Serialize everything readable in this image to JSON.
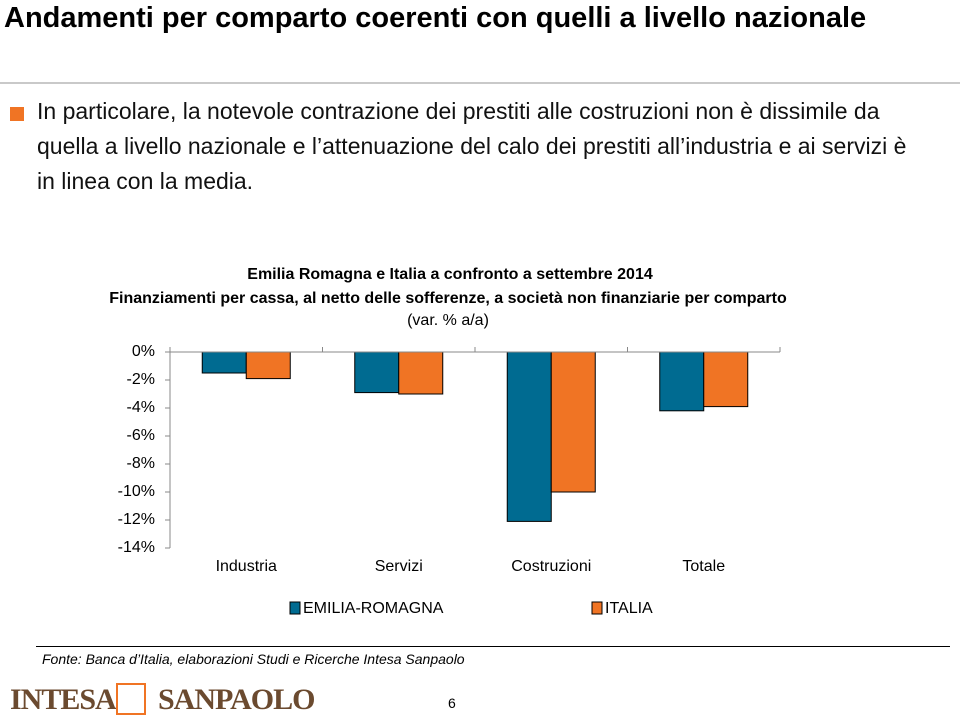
{
  "slide": {
    "title": "Andamenti per comparto coerenti con quelli a livello nazionale",
    "bullet": "In particolare, la notevole contrazione dei prestiti alle costruzioni non è dissimile da quella a livello nazionale e l’attenuazione del calo dei prestiti all’industria e ai servizi è in linea con la media.",
    "source": "Fonte: Banca d’Italia, elaborazioni Studi e Ricerche Intesa Sanpaolo",
    "logo": [
      "INTESA",
      "SANPAOLO"
    ],
    "page_number": "6"
  },
  "chart_data": {
    "type": "bar",
    "title": "Emilia Romagna e Italia a confronto a settembre 2014",
    "subtitle": "Finanziamenti per cassa, al netto delle sofferenze, a società non finanziarie per comparto",
    "y_label": "(var. % a/a)",
    "categories": [
      "Industria",
      "Servizi",
      "Costruzioni",
      "Totale"
    ],
    "series": [
      {
        "name": "EMILIA-ROMAGNA",
        "color": "#006b91",
        "values": [
          -1.5,
          -2.9,
          -12.1,
          -4.2
        ]
      },
      {
        "name": "ITALIA",
        "color": "#f07424",
        "values": [
          -1.9,
          -3.0,
          -10.0,
          -3.9
        ]
      }
    ],
    "ylim": [
      -14,
      0
    ],
    "yticks": [
      {
        "value": 0,
        "label": "0%"
      },
      {
        "value": -2,
        "label": "-2%"
      },
      {
        "value": -4,
        "label": "-4%"
      },
      {
        "value": -6,
        "label": "-6%"
      },
      {
        "value": -8,
        "label": "-8%"
      },
      {
        "value": -10,
        "label": "-10%"
      },
      {
        "value": -12,
        "label": "-12%"
      },
      {
        "value": -14,
        "label": "-14%"
      }
    ],
    "grid": false
  }
}
